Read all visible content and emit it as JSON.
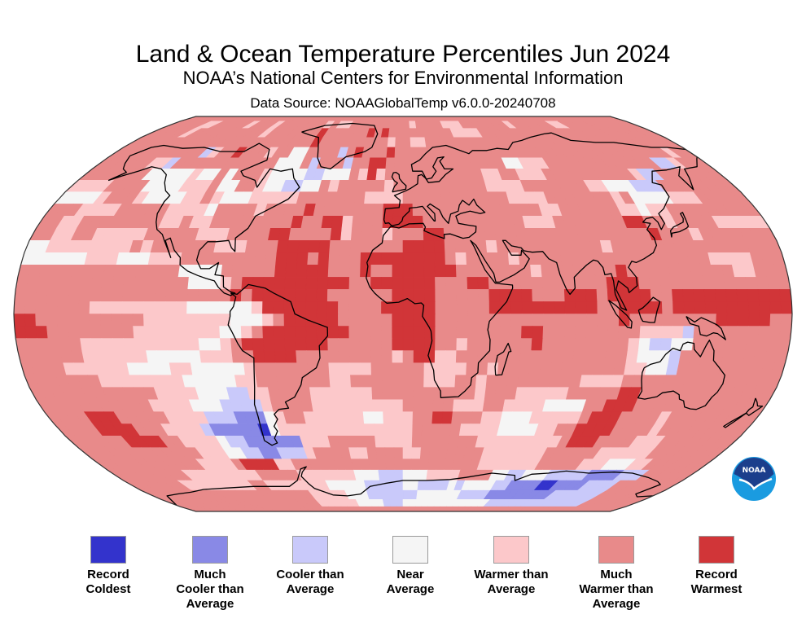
{
  "header": {
    "title": "Land & Ocean Temperature Percentiles Jun 2024",
    "subtitle": "NOAA’s National Centers for Environmental Information",
    "source": "Data Source: NOAAGlobalTemp v6.0.0-20240708"
  },
  "logo": {
    "text": "NOAA",
    "colors": {
      "top": "#1b3e8c",
      "bottom": "#1a9be0"
    }
  },
  "legend": [
    {
      "code": 1,
      "label": "Record Coldest",
      "lines": [
        "Record",
        "Coldest"
      ],
      "color": "#3333cc"
    },
    {
      "code": 2,
      "label": "Much Cooler than Average",
      "lines": [
        "Much",
        "Cooler than",
        "Average"
      ],
      "color": "#8989e6"
    },
    {
      "code": 3,
      "label": "Cooler than Average",
      "lines": [
        "Cooler than",
        "Average"
      ],
      "color": "#c9c9fa"
    },
    {
      "code": 4,
      "label": "Near Average",
      "lines": [
        "Near",
        "Average"
      ],
      "color": "#f5f5f5"
    },
    {
      "code": 5,
      "label": "Warmer than Average",
      "lines": [
        "Warmer than",
        "Average"
      ],
      "color": "#fcc8ca"
    },
    {
      "code": 6,
      "label": "Much Warmer than Average",
      "lines": [
        "Much",
        "Warmer than",
        "Average"
      ],
      "color": "#e88a8a"
    },
    {
      "code": 7,
      "label": "Record Warmest",
      "lines": [
        "Record",
        "Warmest"
      ],
      "color": "#d13538"
    }
  ],
  "chart_data": {
    "type": "heatmap",
    "title": "Land & Ocean Temperature Percentiles Jun 2024",
    "projection": "Robinson",
    "grid_resolution_deg": 5,
    "lat_range": [
      -90,
      90
    ],
    "lon_range": [
      -180,
      180
    ],
    "categories": [
      "Record Coldest",
      "Much Cooler than Average",
      "Cooler than Average",
      "Near Average",
      "Warmer than Average",
      "Much Warmer than Average",
      "Record Warmest"
    ],
    "row_order": "north-to-south, each string 72 columns from 180W to 180E, digit = category code (1-7), 0 = no data",
    "rows": [
      "666666666666666666666666666666666666666666666666666666666666666666666666",
      "666665566666566656666666565566666666656666555666666656666665566666666666",
      "666665666666666656666666766666676766666666655556666666666666666666666666",
      "666666666666666666666666766666666656655666666666666666666666666666666666",
      "666666666663566766656644666636766676666666666666666666666666666666666566",
      "666666553666666666666444636663667766666666666666445556666666666666335666",
      "666666644444544646665444433444657566666666666556655566666666665336666666",
      "555566664444555644665443344656666656666666666555566666665544433366666666",
      "444456665444455654445555566666665555666666666665555666666656444455566666",
      "666555566666555546666566667666666677766666666666665566666655455666666666",
      "665566666666556556666666676677566677776666666666555666666677665666655555",
      "665566555556666655566667766667566656667766666666666666666666766656666666",
      "445555555565666666555666777776666666777766665666666666656666666666666666",
      "444444555444555666666666777676667777777765666656666666666666666665555666",
      "666666666666666444466666777776667667777776666666566666667666666666655666",
      "666666666666666644456777777777766777777666776666666666677766666666666666",
      "666666666666666666667677777776666667777666667777666777677776677777777777",
      "666666655555555544444457777777666677777666667777777777667777677777777777",
      "776666666666555555554445677777666667777666666666666666667666666667777766",
      "777666666665555555544567777777766667777666666667766666666655553666666666",
      "666666555555555554456777777776666667777665666666766666666543344666666666",
      "666666555555444445556677776666666665677556666666666666666544436666666666",
      "666655555544445544444566666665555666665555665666666666666554436666666666",
      "666666655555555444445566666665566666665556656666666665555666666666666666",
      "666666666666555544433556666555555666666666656665555566666776666666666666",
      "666666666665555444333356666555555555666665556655554444667776666666666666",
      "666677766666555533322245665555554455566776665544455555677766665666666666",
      "666677776665555322222145555555555555566666555544445566777766665666666666",
      "666666777766555543322222255566666555566666665555555556777666655566666666",
      "666666666666655544332233356666556666556666666555555566666655555566666666",
      "666666666666555567777556666666666666666666666555555566666555444556666666",
      "666666666555555555666665555555444333444555566664433444333332222333666666",
      "666666655555555566555555554444433333443333434444332222112222333366666666",
      "666666666666666666666665555544433333334444443333222222222333333366666666",
      "666666666666666666666665555554444333444444444444433333333333333366666666",
      "666666666666666666666666666666666666666666666666666666666666666666666666"
    ]
  }
}
